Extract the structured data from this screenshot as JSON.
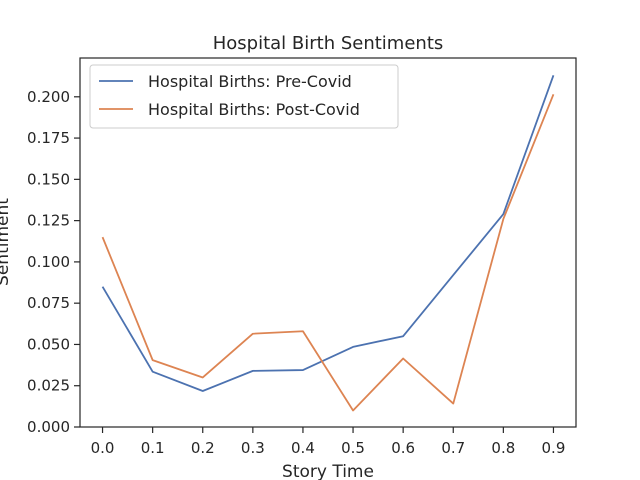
{
  "chart_data": {
    "type": "line",
    "title": "Hospital Birth Sentiments",
    "xlabel": "Story Time",
    "ylabel": "Sentiment",
    "x": [
      0.0,
      0.1,
      0.2,
      0.3,
      0.4,
      0.5,
      0.6,
      0.7,
      0.8,
      0.9
    ],
    "xlim": [
      -0.045,
      0.945
    ],
    "ylim": [
      0.0,
      0.2235
    ],
    "x_ticks": [
      "0.0",
      "0.1",
      "0.2",
      "0.3",
      "0.4",
      "0.5",
      "0.6",
      "0.7",
      "0.8",
      "0.9"
    ],
    "y_ticks": [
      "0.000",
      "0.025",
      "0.050",
      "0.075",
      "0.100",
      "0.125",
      "0.150",
      "0.175",
      "0.200"
    ],
    "grid": false,
    "legend_position": "top-left",
    "series": [
      {
        "name": "Hospital Births: Pre-Covid",
        "color": "#4c72b0",
        "values": [
          0.085,
          0.0335,
          0.0218,
          0.034,
          0.0345,
          0.0485,
          0.055,
          0.092,
          0.129,
          0.213
        ]
      },
      {
        "name": "Hospital Births: Post-Covid",
        "color": "#dd8452",
        "values": [
          0.115,
          0.0405,
          0.03,
          0.0565,
          0.058,
          0.01,
          0.0415,
          0.0142,
          0.126,
          0.2015
        ]
      }
    ]
  }
}
